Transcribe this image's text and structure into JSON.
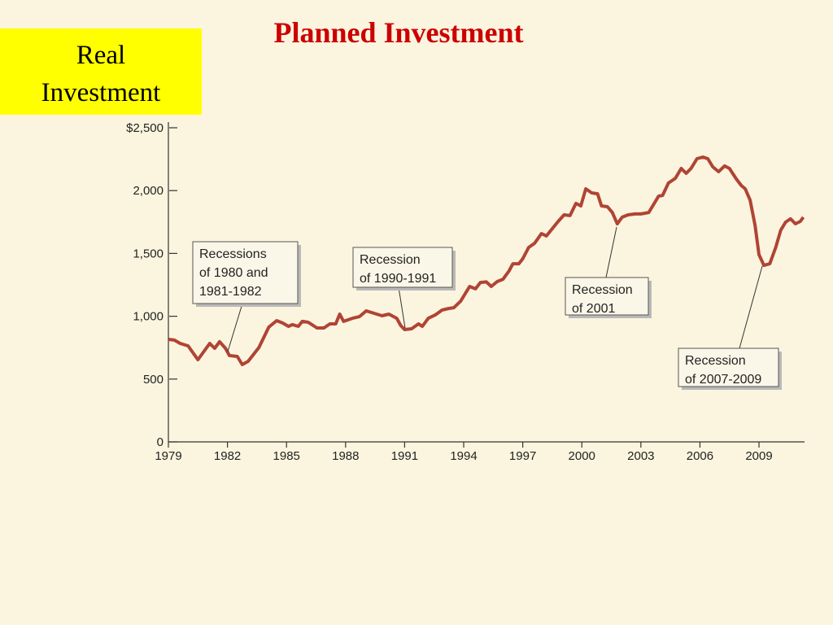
{
  "chart_data": {
    "type": "line",
    "title": "Planned Investment",
    "badge": [
      "Real",
      "Investment"
    ],
    "color": "#b04434",
    "x": [
      1979.0,
      1979.3,
      1979.6,
      1980.0,
      1980.5,
      1981.1,
      1981.35,
      1981.6,
      1981.9,
      1982.1,
      1982.5,
      1982.75,
      1983.05,
      1983.6,
      1984.1,
      1984.5,
      1984.8,
      1985.1,
      1985.3,
      1985.6,
      1985.8,
      1986.1,
      1986.55,
      1986.9,
      1987.2,
      1987.5,
      1987.7,
      1987.9,
      1988.35,
      1988.7,
      1989.05,
      1989.45,
      1989.85,
      1990.2,
      1990.6,
      1990.8,
      1991.0,
      1991.35,
      1991.7,
      1991.9,
      1992.2,
      1992.55,
      1992.9,
      1993.25,
      1993.5,
      1993.85,
      1994.1,
      1994.3,
      1994.6,
      1994.85,
      1995.15,
      1995.4,
      1995.7,
      1996.0,
      1996.3,
      1996.5,
      1996.8,
      1997.0,
      1997.3,
      1997.6,
      1997.95,
      1998.2,
      1998.5,
      1998.8,
      1999.1,
      1999.4,
      1999.7,
      1999.95,
      2000.2,
      2000.5,
      2000.8,
      2001.0,
      2001.3,
      2001.55,
      2001.8,
      2002.05,
      2002.35,
      2002.7,
      2003.0,
      2003.4,
      2003.6,
      2003.9,
      2004.1,
      2004.4,
      2004.75,
      2005.05,
      2005.3,
      2005.55,
      2005.85,
      2006.15,
      2006.4,
      2006.65,
      2006.95,
      2007.25,
      2007.5,
      2007.85,
      2008.1,
      2008.3,
      2008.55,
      2008.8,
      2009.0,
      2009.25,
      2009.55,
      2009.85,
      2010.1,
      2010.35,
      2010.6,
      2010.85,
      2011.1,
      2011.25
    ],
    "values": [
      816,
      810,
      784,
      764,
      654,
      784,
      745,
      797,
      745,
      687,
      680,
      615,
      641,
      751,
      913,
      965,
      946,
      920,
      933,
      920,
      959,
      952,
      907,
      907,
      939,
      939,
      1017,
      959,
      984,
      997,
      1043,
      1023,
      1004,
      1017,
      984,
      926,
      894,
      900,
      939,
      920,
      984,
      1010,
      1049,
      1062,
      1068,
      1121,
      1185,
      1237,
      1218,
      1269,
      1273,
      1237,
      1276,
      1295,
      1360,
      1418,
      1418,
      1457,
      1548,
      1580,
      1658,
      1639,
      1697,
      1755,
      1807,
      1801,
      1898,
      1878,
      2014,
      1982,
      1975,
      1878,
      1872,
      1826,
      1736,
      1788,
      1807,
      1814,
      1814,
      1826,
      1878,
      1956,
      1962,
      2060,
      2098,
      2176,
      2137,
      2176,
      2254,
      2267,
      2254,
      2189,
      2150,
      2196,
      2176,
      2092,
      2040,
      2014,
      1924,
      1723,
      1490,
      1405,
      1418,
      1548,
      1684,
      1749,
      1775,
      1736,
      1755,
      1788
    ],
    "xlim": [
      1979,
      2011.3
    ],
    "xticks": [
      1979,
      1982,
      1985,
      1988,
      1991,
      1994,
      1997,
      2000,
      2003,
      2006,
      2009
    ],
    "ylim": [
      0,
      2500
    ],
    "yticks": [
      0,
      500,
      {
        "value": 1000,
        "label": "1,000"
      },
      {
        "value": 1500,
        "label": "1,500"
      },
      {
        "value": 2000,
        "label": "2,000"
      },
      {
        "value": 2500,
        "label": "$2,500"
      }
    ],
    "annotations": [
      {
        "lines": [
          "Recessions",
          "of 1980 and",
          "1981-1982"
        ]
      },
      {
        "lines": [
          "Recession",
          "of 1990-1991"
        ]
      },
      {
        "lines": [
          "Recession",
          "of 2001"
        ]
      },
      {
        "lines": [
          "Recession",
          "of 2007-2009"
        ]
      }
    ]
  }
}
